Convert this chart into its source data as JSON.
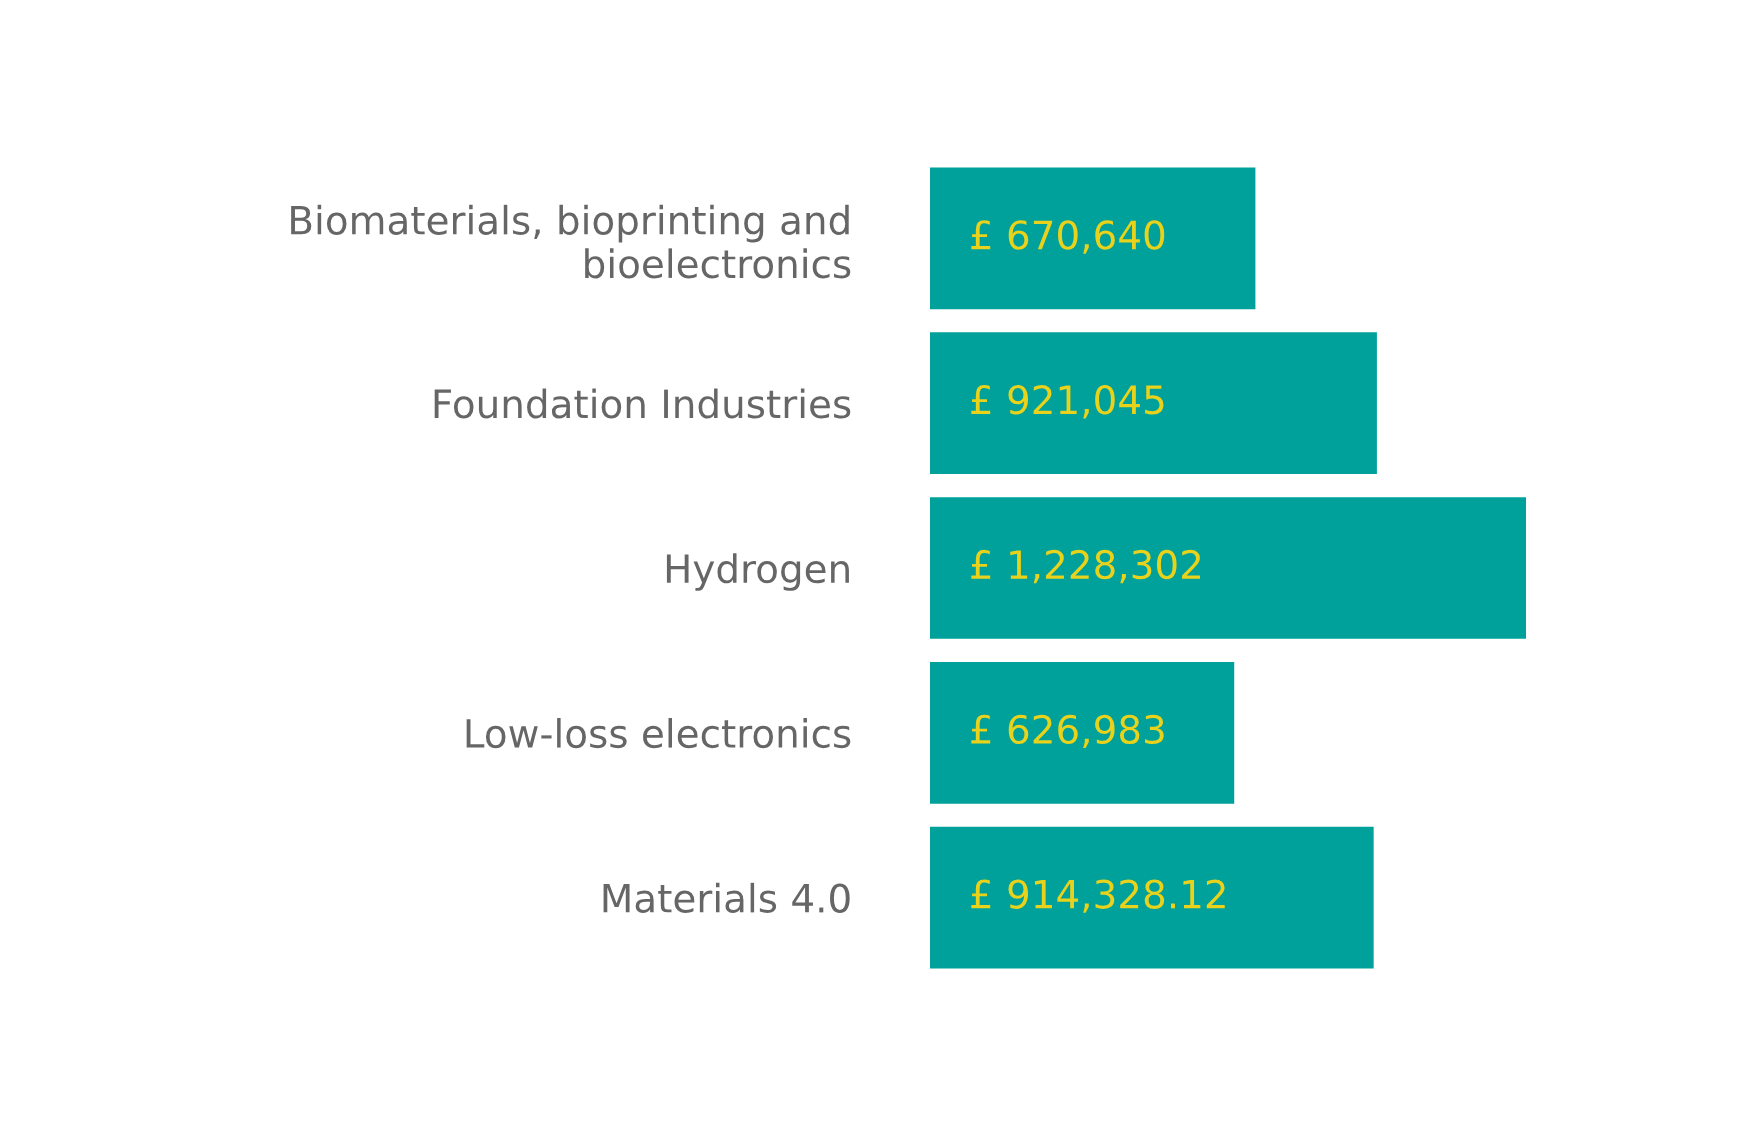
{
  "chart_data": {
    "type": "bar",
    "orientation": "horizontal",
    "categories": [
      "Biomaterials, bioprinting and bioelectronics",
      "Foundation Industries",
      "Hydrogen",
      "Low-loss electronics",
      "Materials 4.0"
    ],
    "values": [
      670640,
      921045,
      1228302,
      626983,
      914328.12
    ],
    "value_labels": [
      "£ 670,640",
      "£ 921,045",
      "£ 1,228,302",
      "£ 626,983",
      "£ 914,328.12"
    ],
    "color": "#00a19a",
    "grid": false,
    "legend": false
  }
}
